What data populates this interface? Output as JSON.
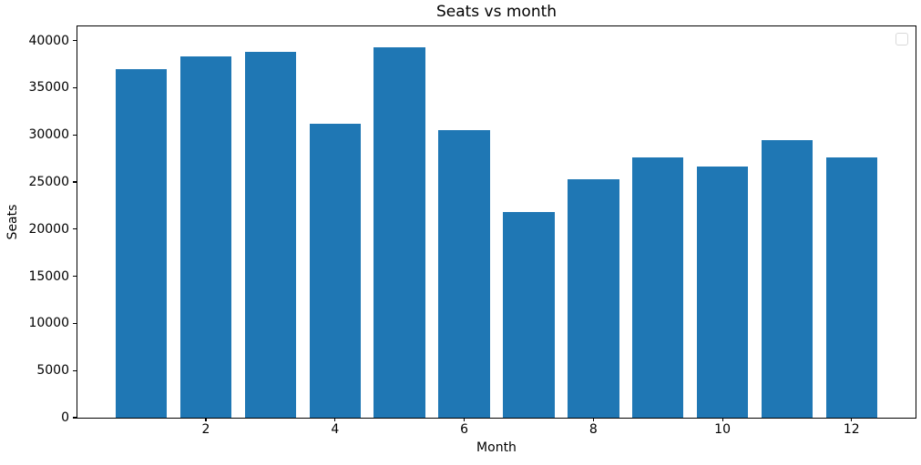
{
  "chart_data": {
    "type": "bar",
    "title": "Seats vs month",
    "xlabel": "Month",
    "ylabel": "Seats",
    "x": [
      1,
      2,
      3,
      4,
      5,
      6,
      7,
      8,
      9,
      10,
      11,
      12
    ],
    "values": [
      37000,
      38300,
      38800,
      31200,
      39300,
      30500,
      21800,
      25300,
      27600,
      26600,
      29400,
      27600
    ],
    "bar_width": 0.8,
    "bar_color": "#1f77b4",
    "xticks": [
      2,
      4,
      6,
      8,
      10,
      12
    ],
    "yticks": [
      0,
      5000,
      10000,
      15000,
      20000,
      25000,
      30000,
      35000,
      40000
    ],
    "xlim": [
      0.01,
      12.99
    ],
    "ylim": [
      0,
      41500
    ],
    "grid": false,
    "legend": {
      "position": "upper right",
      "entries": [],
      "empty_box": true
    },
    "background_color": "#ffffff",
    "text_color": "#000000",
    "spine_color": "#000000"
  }
}
